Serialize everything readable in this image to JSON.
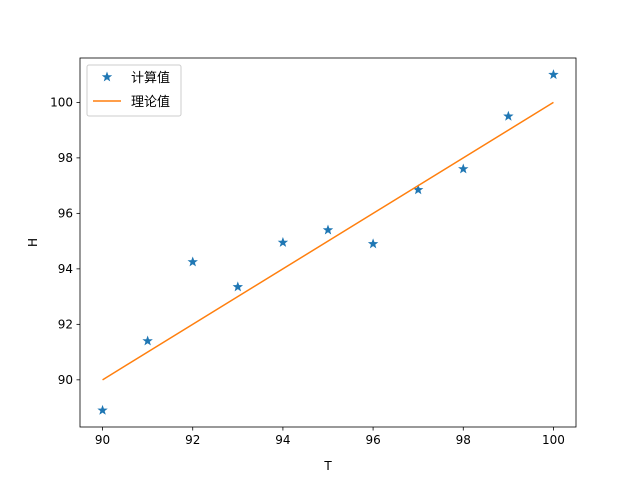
{
  "chart_data": {
    "type": "scatter",
    "xlabel": "T",
    "ylabel": "H",
    "xlim": [
      89.5,
      100.5
    ],
    "ylim": [
      88.3,
      101.6
    ],
    "xticks": [
      90,
      92,
      94,
      96,
      98,
      100
    ],
    "yticks": [
      90,
      92,
      94,
      96,
      98,
      100
    ],
    "legend_position": "upper-left",
    "series": [
      {
        "name": "计算值",
        "kind": "scatter",
        "marker": "star",
        "color": "#1f77b4",
        "x": [
          90,
          91,
          92,
          93,
          94,
          95,
          96,
          97,
          98,
          99,
          100
        ],
        "y": [
          88.9,
          91.4,
          94.25,
          93.35,
          94.95,
          95.4,
          94.9,
          96.85,
          97.6,
          99.5,
          101.0
        ]
      },
      {
        "name": "理论值",
        "kind": "line",
        "color": "#ff7f0e",
        "x": [
          90,
          100
        ],
        "y": [
          90,
          100
        ]
      }
    ]
  }
}
